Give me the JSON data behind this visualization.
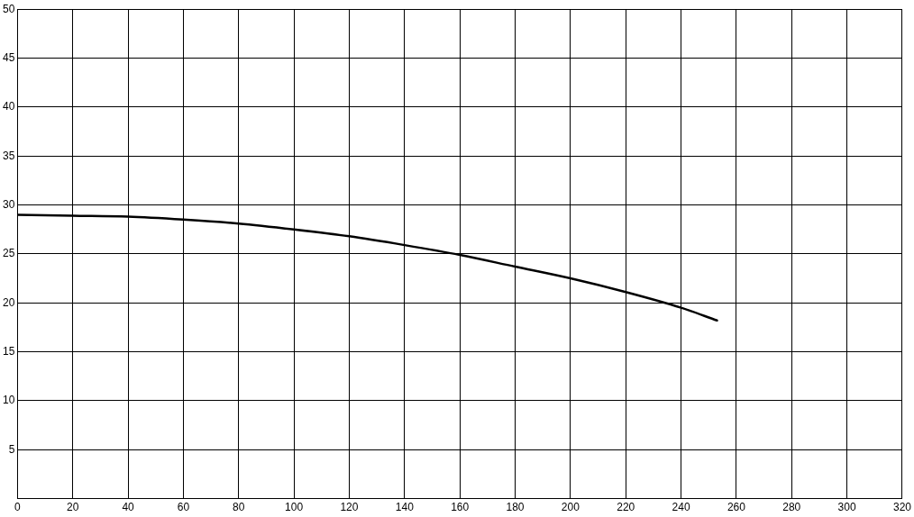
{
  "chart_data": {
    "type": "line",
    "x": [
      0,
      20,
      40,
      60,
      80,
      100,
      120,
      140,
      160,
      180,
      200,
      220,
      240,
      253
    ],
    "series": [
      {
        "color": "#000000",
        "values": [
          29.0,
          28.9,
          28.8,
          28.5,
          28.1,
          27.5,
          26.8,
          25.9,
          24.9,
          23.7,
          22.5,
          21.1,
          19.5,
          18.2
        ]
      }
    ],
    "xlim": [
      0,
      320
    ],
    "xticks": [
      0,
      20,
      40,
      60,
      80,
      100,
      120,
      140,
      160,
      180,
      200,
      220,
      240,
      260,
      280,
      300,
      320
    ],
    "ylim": [
      0,
      50
    ],
    "yticks": [
      5,
      10,
      15,
      20,
      25,
      30,
      35,
      40,
      45,
      50
    ],
    "grid": true,
    "legend": false,
    "marker": "none",
    "line_style": "solid"
  }
}
